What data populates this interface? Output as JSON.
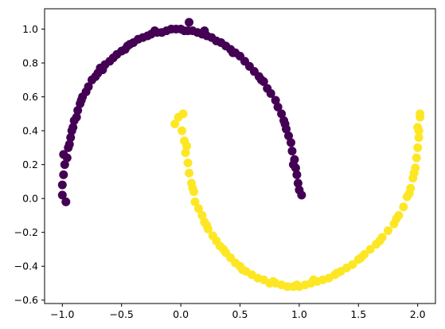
{
  "chart_data": {
    "type": "scatter",
    "title": "",
    "xlabel": "",
    "ylabel": "",
    "xlim": [
      -1.15,
      2.15
    ],
    "ylim": [
      -0.62,
      1.12
    ],
    "grid": false,
    "legend": "none",
    "x_ticks": [
      -1.0,
      -0.5,
      0.0,
      0.5,
      1.0,
      1.5,
      2.0
    ],
    "x_tick_labels": [
      "−1.0",
      "−0.5",
      "0.0",
      "0.5",
      "1.0",
      "1.5",
      "2.0"
    ],
    "y_ticks": [
      -0.6,
      -0.4,
      -0.2,
      0.0,
      0.2,
      0.4,
      0.6,
      0.8,
      1.0
    ],
    "y_tick_labels": [
      "−0.6",
      "−0.4",
      "−0.2",
      "0.0",
      "0.2",
      "0.4",
      "0.6",
      "0.8",
      "1.0"
    ],
    "series": [
      {
        "color": "#440154",
        "points": [
          [
            -1.0,
            0.02
          ],
          [
            -0.97,
            -0.02
          ],
          [
            -1.0,
            0.08
          ],
          [
            -0.99,
            0.14
          ],
          [
            -0.98,
            0.2
          ],
          [
            -0.99,
            0.26
          ],
          [
            -0.96,
            0.24
          ],
          [
            -0.95,
            0.3
          ],
          [
            -0.93,
            0.36
          ],
          [
            -0.94,
            0.32
          ],
          [
            -0.91,
            0.42
          ],
          [
            -0.9,
            0.46
          ],
          [
            -0.88,
            0.48
          ],
          [
            -0.87,
            0.52
          ],
          [
            -0.85,
            0.56
          ],
          [
            -0.83,
            0.6
          ],
          [
            -0.8,
            0.63
          ],
          [
            -0.78,
            0.66
          ],
          [
            -0.75,
            0.7
          ],
          [
            -0.72,
            0.72
          ],
          [
            -0.7,
            0.74
          ],
          [
            -0.66,
            0.76
          ],
          [
            -0.64,
            0.79
          ],
          [
            -0.6,
            0.81
          ],
          [
            -0.57,
            0.83
          ],
          [
            -0.54,
            0.85
          ],
          [
            -0.5,
            0.87
          ],
          [
            -0.47,
            0.88
          ],
          [
            -0.43,
            0.91
          ],
          [
            -0.4,
            0.92
          ],
          [
            -0.36,
            0.94
          ],
          [
            -0.32,
            0.95
          ],
          [
            -0.28,
            0.96
          ],
          [
            -0.25,
            0.97
          ],
          [
            -0.2,
            0.98
          ],
          [
            -0.16,
            0.98
          ],
          [
            -0.12,
            0.99
          ],
          [
            -0.08,
            1.0
          ],
          [
            -0.04,
            1.0
          ],
          [
            0.0,
            1.0
          ],
          [
            0.03,
            0.99
          ],
          [
            0.07,
            1.04
          ],
          [
            0.06,
            0.99
          ],
          [
            0.1,
            0.99
          ],
          [
            0.14,
            0.98
          ],
          [
            0.18,
            0.97
          ],
          [
            0.22,
            0.96
          ],
          [
            0.26,
            0.95
          ],
          [
            0.3,
            0.93
          ],
          [
            0.34,
            0.92
          ],
          [
            0.38,
            0.9
          ],
          [
            0.42,
            0.88
          ],
          [
            0.46,
            0.86
          ],
          [
            0.5,
            0.84
          ],
          [
            0.54,
            0.81
          ],
          [
            0.58,
            0.78
          ],
          [
            0.62,
            0.75
          ],
          [
            0.66,
            0.72
          ],
          [
            0.7,
            0.69
          ],
          [
            0.73,
            0.65
          ],
          [
            0.76,
            0.62
          ],
          [
            0.8,
            0.58
          ],
          [
            0.82,
            0.54
          ],
          [
            0.85,
            0.5
          ],
          [
            0.87,
            0.46
          ],
          [
            0.89,
            0.41
          ],
          [
            0.91,
            0.37
          ],
          [
            0.93,
            0.33
          ],
          [
            0.94,
            0.28
          ],
          [
            0.96,
            0.23
          ],
          [
            0.97,
            0.18
          ],
          [
            0.98,
            0.14
          ],
          [
            0.99,
            0.09
          ],
          [
            1.0,
            0.05
          ],
          [
            1.02,
            0.02
          ],
          [
            -0.92,
            0.4
          ],
          [
            -0.84,
            0.58
          ],
          [
            -0.68,
            0.77
          ],
          [
            -0.45,
            0.9
          ],
          [
            -0.22,
            0.99
          ],
          [
            0.2,
            0.99
          ],
          [
            0.44,
            0.86
          ],
          [
            0.68,
            0.7
          ],
          [
            0.88,
            0.44
          ],
          [
            0.95,
            0.2
          ]
        ]
      },
      {
        "color": "#fde725",
        "points": [
          [
            -0.05,
            0.44
          ],
          [
            -0.02,
            0.48
          ],
          [
            0.02,
            0.5
          ],
          [
            0.01,
            0.4
          ],
          [
            0.03,
            0.34
          ],
          [
            0.04,
            0.27
          ],
          [
            0.06,
            0.21
          ],
          [
            0.07,
            0.15
          ],
          [
            0.09,
            0.09
          ],
          [
            0.11,
            0.04
          ],
          [
            0.12,
            -0.02
          ],
          [
            0.15,
            -0.06
          ],
          [
            0.18,
            -0.1
          ],
          [
            0.2,
            -0.14
          ],
          [
            0.23,
            -0.18
          ],
          [
            0.27,
            -0.22
          ],
          [
            0.3,
            -0.25
          ],
          [
            0.33,
            -0.28
          ],
          [
            0.38,
            -0.32
          ],
          [
            0.42,
            -0.35
          ],
          [
            0.46,
            -0.38
          ],
          [
            0.5,
            -0.4
          ],
          [
            0.55,
            -0.43
          ],
          [
            0.6,
            -0.45
          ],
          [
            0.65,
            -0.47
          ],
          [
            0.7,
            -0.48
          ],
          [
            0.75,
            -0.5
          ],
          [
            0.8,
            -0.5
          ],
          [
            0.85,
            -0.51
          ],
          [
            0.9,
            -0.52
          ],
          [
            0.95,
            -0.52
          ],
          [
            1.0,
            -0.52
          ],
          [
            1.05,
            -0.51
          ],
          [
            1.1,
            -0.5
          ],
          [
            1.15,
            -0.49
          ],
          [
            1.2,
            -0.48
          ],
          [
            1.25,
            -0.47
          ],
          [
            1.3,
            -0.45
          ],
          [
            1.35,
            -0.43
          ],
          [
            1.4,
            -0.41
          ],
          [
            1.45,
            -0.39
          ],
          [
            1.5,
            -0.36
          ],
          [
            1.55,
            -0.33
          ],
          [
            1.6,
            -0.3
          ],
          [
            1.65,
            -0.27
          ],
          [
            1.7,
            -0.23
          ],
          [
            1.75,
            -0.19
          ],
          [
            1.8,
            -0.15
          ],
          [
            1.84,
            -0.1
          ],
          [
            1.88,
            -0.05
          ],
          [
            1.91,
            0.01
          ],
          [
            1.94,
            0.06
          ],
          [
            1.96,
            0.12
          ],
          [
            1.98,
            0.18
          ],
          [
            1.99,
            0.24
          ],
          [
            2.0,
            0.3
          ],
          [
            2.01,
            0.36
          ],
          [
            2.0,
            0.42
          ],
          [
            2.02,
            0.48
          ],
          [
            2.02,
            0.5
          ],
          [
            0.05,
            0.31
          ],
          [
            0.1,
            0.06
          ],
          [
            0.22,
            -0.16
          ],
          [
            0.36,
            -0.3
          ],
          [
            0.52,
            -0.42
          ],
          [
            0.78,
            -0.49
          ],
          [
            0.98,
            -0.51
          ],
          [
            1.12,
            -0.48
          ],
          [
            1.32,
            -0.44
          ],
          [
            1.52,
            -0.35
          ],
          [
            1.68,
            -0.25
          ],
          [
            1.82,
            -0.12
          ],
          [
            1.93,
            0.03
          ],
          [
            1.97,
            0.15
          ],
          [
            2.01,
            0.4
          ]
        ]
      }
    ]
  }
}
